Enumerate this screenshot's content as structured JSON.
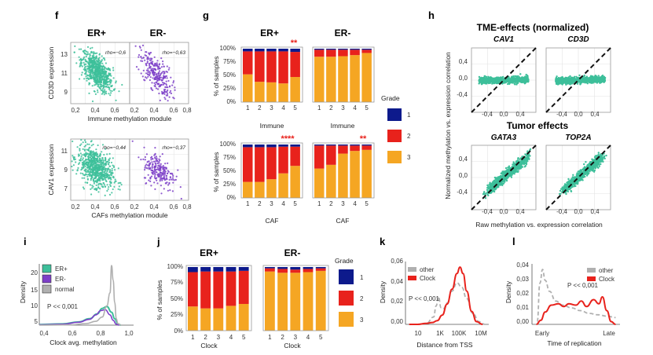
{
  "colors": {
    "teal": "#3dbf9a",
    "purple": "#7d3fc8",
    "grade1": "#0d1a8c",
    "grade2": "#e8221c",
    "grade3": "#f5a623",
    "grey": "#b0b0b0",
    "red": "#e8221c",
    "star": "#e8221c"
  },
  "panel_letters": {
    "f": "f",
    "g": "g",
    "h": "h",
    "i": "i",
    "j": "j",
    "k": "k",
    "l": "l"
  },
  "chart_data": [
    {
      "id": "f-top",
      "type": "scatter",
      "titles": [
        "ER+",
        "ER-"
      ],
      "ylabel": "CD3D expression",
      "xlabel": "Immune methylation module",
      "rho": [
        "rho=−0,6",
        "rho=−0,63"
      ],
      "x_ticks": [
        "0,2",
        "0,4",
        "0,6",
        "0,8"
      ],
      "y_ticks": [
        "9",
        "11",
        "13"
      ],
      "xlim": [
        0.15,
        0.75
      ],
      "ylim": [
        8,
        14
      ],
      "clouds": [
        {
          "cx": 0.42,
          "cy": 11.1,
          "sx": 0.08,
          "sy": 1.0,
          "rho": -0.6,
          "n": 700
        },
        {
          "cx": 0.42,
          "cy": 10.9,
          "sx": 0.08,
          "sy": 1.1,
          "rho": -0.63,
          "n": 260
        }
      ]
    },
    {
      "id": "f-bottom",
      "type": "scatter",
      "ylabel": "CAV1 expression",
      "xlabel": "CAFs methylation module",
      "rho": [
        "rho=−0,44",
        "rho=−0,37"
      ],
      "x_ticks": [
        "0,2",
        "0,4",
        "0,6",
        "0,8"
      ],
      "y_ticks": [
        "7",
        "9",
        "11"
      ],
      "xlim": [
        0.15,
        0.75
      ],
      "ylim": [
        6,
        12
      ],
      "clouds": [
        {
          "cx": 0.4,
          "cy": 9.2,
          "sx": 0.09,
          "sy": 1.0,
          "rho": -0.44,
          "n": 700
        },
        {
          "cx": 0.45,
          "cy": 8.9,
          "sx": 0.08,
          "sy": 0.9,
          "rho": -0.37,
          "n": 220
        }
      ]
    },
    {
      "id": "g",
      "type": "bar",
      "stacked": true,
      "titles": [
        "ER+",
        "ER-"
      ],
      "ylabel": "% of samples",
      "y_ticks": [
        "0%",
        "25%",
        "50%",
        "75%",
        "100%"
      ],
      "categories": [
        "1",
        "2",
        "3",
        "4",
        "5"
      ],
      "legend_title": "Grade",
      "legend": [
        "1",
        "2",
        "3"
      ],
      "rows": [
        {
          "xlabel": "Immune",
          "stars": [
            "**",
            ""
          ],
          "groups": [
            {
              "grade1": [
                5,
                5,
                5,
                5,
                6
              ],
              "grade2": [
                43,
                57,
                58,
                60,
                47
              ],
              "grade3": [
                52,
                38,
                37,
                35,
                47
              ]
            },
            {
              "grade1": [
                2,
                2,
                2,
                2,
                2
              ],
              "grade2": [
                13,
                13,
                12,
                10,
                6
              ],
              "grade3": [
                85,
                85,
                86,
                88,
                92
              ]
            }
          ]
        },
        {
          "xlabel": "CAF",
          "stars": [
            "****",
            "**"
          ],
          "groups": [
            {
              "grade1": [
                5,
                5,
                5,
                4,
                4
              ],
              "grade2": [
                65,
                65,
                60,
                50,
                36
              ],
              "grade3": [
                30,
                30,
                35,
                46,
                60
              ]
            },
            {
              "grade1": [
                2,
                2,
                2,
                2,
                2
              ],
              "grade2": [
                43,
                36,
                15,
                10,
                8
              ],
              "grade3": [
                55,
                62,
                83,
                88,
                90
              ]
            }
          ]
        }
      ]
    },
    {
      "id": "h",
      "type": "scatter",
      "title": "TME-effects (normalized)",
      "subtitle": "Tumor effects",
      "genes": [
        "CAV1",
        "CD3D",
        "GATA3",
        "TOP2A"
      ],
      "ylabel": "Normalized methylation vs. expression correlation",
      "xlabel": "Raw methylation vs. expression correlation",
      "x_ticks": [
        "-0,4",
        "0,0",
        "0,4"
      ],
      "y_ticks": [
        "-0,4",
        "0,0",
        "0,4"
      ],
      "xlim": [
        -0.75,
        0.75
      ],
      "ylim": [
        -0.75,
        0.75
      ],
      "band_types": [
        "flat",
        "flat",
        "diag",
        "diag"
      ]
    },
    {
      "id": "i",
      "type": "line",
      "ylabel": "Density",
      "xlabel": "Clock avg. methylation",
      "x_ticks": [
        "0,4",
        "0,6",
        "0,8",
        "1,0"
      ],
      "y_ticks": [
        "5",
        "10",
        "15",
        "20"
      ],
      "xlim": [
        0.4,
        1.0
      ],
      "ylim": [
        4,
        23
      ],
      "legend": [
        "ER+",
        "ER-",
        "normal"
      ],
      "annotation": "P << 0,001",
      "series": [
        {
          "name": "ER+",
          "x": [
            0.4,
            0.55,
            0.65,
            0.72,
            0.77,
            0.8,
            0.83,
            0.86,
            0.88,
            0.9,
            0.92
          ],
          "y": [
            4.2,
            4.4,
            5.0,
            6.0,
            7.5,
            9.2,
            9.8,
            8.0,
            6.0,
            4.4,
            4.0
          ]
        },
        {
          "name": "ER-",
          "x": [
            0.4,
            0.55,
            0.65,
            0.72,
            0.76,
            0.79,
            0.82,
            0.85,
            0.87,
            0.89,
            0.91
          ],
          "y": [
            4.1,
            4.3,
            4.9,
            5.8,
            7.2,
            8.5,
            8.8,
            7.2,
            5.5,
            4.3,
            4.0
          ]
        },
        {
          "name": "normal",
          "x": [
            0.4,
            0.6,
            0.7,
            0.76,
            0.8,
            0.83,
            0.85,
            0.86,
            0.87,
            0.88,
            0.89,
            0.9,
            0.92
          ],
          "y": [
            4.0,
            4.1,
            4.5,
            5.2,
            6.5,
            10.0,
            14.0,
            22.5,
            18.0,
            11.0,
            6.0,
            4.5,
            4.0
          ]
        }
      ]
    },
    {
      "id": "j",
      "type": "bar",
      "stacked": true,
      "titles": [
        "ER+",
        "ER-"
      ],
      "ylabel": "% of samples",
      "xlabel": "Clock",
      "y_ticks": [
        "0%",
        "25%",
        "50%",
        "75%",
        "100%"
      ],
      "categories": [
        "1",
        "2",
        "3",
        "4",
        "5"
      ],
      "legend_title": "Grade",
      "legend": [
        "1",
        "2",
        "3"
      ],
      "groups": [
        {
          "grade1": [
            8,
            7,
            7,
            7,
            6
          ],
          "grade2": [
            54,
            58,
            58,
            54,
            52
          ],
          "grade3": [
            38,
            35,
            35,
            39,
            42
          ]
        },
        {
          "grade1": [
            2,
            3,
            4,
            3,
            2
          ],
          "grade2": [
            5,
            6,
            5,
            5,
            4
          ],
          "grade3": [
            93,
            91,
            91,
            92,
            94
          ]
        }
      ]
    },
    {
      "id": "k",
      "type": "line",
      "ylabel": "Density",
      "xlabel": "Distance from TSS",
      "x_ticks": [
        "10",
        "1K",
        "100K",
        "10M"
      ],
      "y_ticks": [
        "0,00",
        "0,02",
        "0,04",
        "0,06"
      ],
      "xlim": [
        0.5,
        7.3
      ],
      "ylim": [
        0,
        0.068
      ],
      "legend": [
        "other",
        "Clock"
      ],
      "annotation": "P << 0,001",
      "series": [
        {
          "name": "other",
          "style": "dashed",
          "x": [
            0.8,
            1.5,
            2.2,
            2.8,
            3.0,
            3.2,
            3.4,
            3.6,
            3.9,
            4.3,
            4.7,
            5.1,
            5.5,
            6.0,
            6.5,
            7.0
          ],
          "y": [
            0,
            0,
            0.001,
            0.008,
            0.02,
            0.03,
            0.018,
            0.017,
            0.023,
            0.036,
            0.045,
            0.04,
            0.028,
            0.012,
            0.003,
            0
          ]
        },
        {
          "name": "Clock",
          "style": "solid",
          "x": [
            0.8,
            1.5,
            2.2,
            2.7,
            3.1,
            3.5,
            3.9,
            4.3,
            4.7,
            4.95,
            5.2,
            5.5,
            5.9,
            6.3,
            6.8
          ],
          "y": [
            0,
            0,
            0.001,
            0.002,
            0.004,
            0.01,
            0.022,
            0.038,
            0.055,
            0.062,
            0.055,
            0.036,
            0.014,
            0.003,
            0
          ]
        }
      ]
    },
    {
      "id": "l",
      "type": "line",
      "ylabel": "Density",
      "xlabel": "Time of replication",
      "x_ticks": [
        "Early",
        "Late"
      ],
      "y_ticks": [
        "0,00",
        "0,01",
        "0,02",
        "0,03",
        "0,04"
      ],
      "xlim": [
        0,
        1
      ],
      "ylim": [
        0,
        0.044
      ],
      "legend": [
        "other",
        "Clock"
      ],
      "annotation": "P << 0,001",
      "series": [
        {
          "name": "other",
          "style": "dashed",
          "x": [
            0.06,
            0.09,
            0.12,
            0.15,
            0.2,
            0.27,
            0.35,
            0.45,
            0.55,
            0.65,
            0.75,
            0.85,
            0.95
          ],
          "y": [
            0.002,
            0.03,
            0.04,
            0.032,
            0.024,
            0.017,
            0.014,
            0.012,
            0.01,
            0.008,
            0.007,
            0.006,
            0.005
          ]
        },
        {
          "name": "Clock",
          "style": "solid",
          "x": [
            0.05,
            0.1,
            0.15,
            0.22,
            0.3,
            0.36,
            0.42,
            0.5,
            0.56,
            0.62,
            0.7,
            0.76,
            0.8,
            0.85,
            0.9,
            0.95
          ],
          "y": [
            0,
            0.003,
            0.009,
            0.014,
            0.015,
            0.013,
            0.015,
            0.014,
            0.017,
            0.013,
            0.018,
            0.015,
            0.02,
            0.01,
            0.002,
            0
          ]
        }
      ]
    }
  ]
}
